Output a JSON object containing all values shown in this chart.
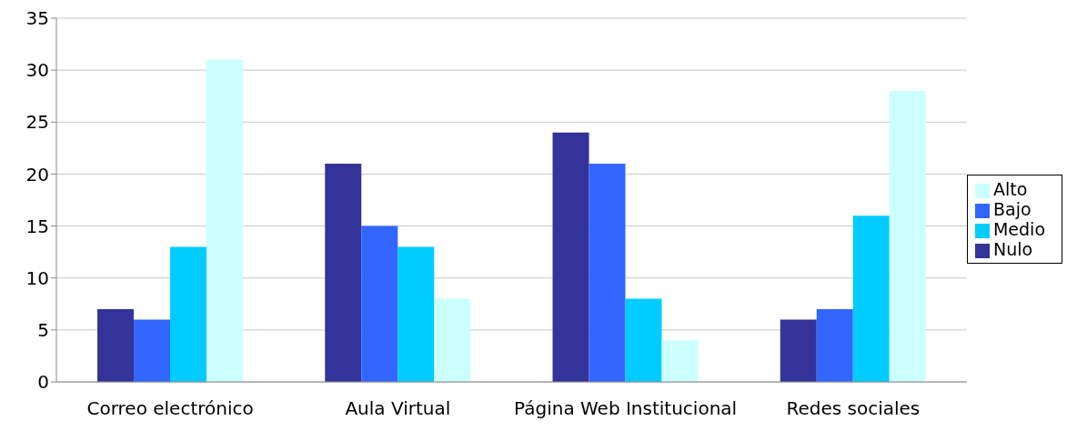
{
  "chart_data": {
    "type": "bar",
    "categories": [
      "Correo electrónico",
      "Aula Virtual",
      "Página Web Institucional",
      "Redes sociales"
    ],
    "series": [
      {
        "name": "Nulo",
        "color": "#333399",
        "values": [
          7,
          21,
          24,
          6
        ]
      },
      {
        "name": "Bajo",
        "color": "#3366ff",
        "values": [
          6,
          15,
          21,
          7
        ]
      },
      {
        "name": "Medio",
        "color": "#00ccff",
        "values": [
          13,
          13,
          8,
          16
        ]
      },
      {
        "name": "Alto",
        "color": "#ccffff",
        "values": [
          31,
          8,
          4,
          28
        ]
      }
    ],
    "ylim": [
      0,
      35
    ],
    "yticks": [
      0,
      5,
      10,
      15,
      20,
      25,
      30,
      35
    ],
    "grid": "y",
    "legend": "right"
  }
}
